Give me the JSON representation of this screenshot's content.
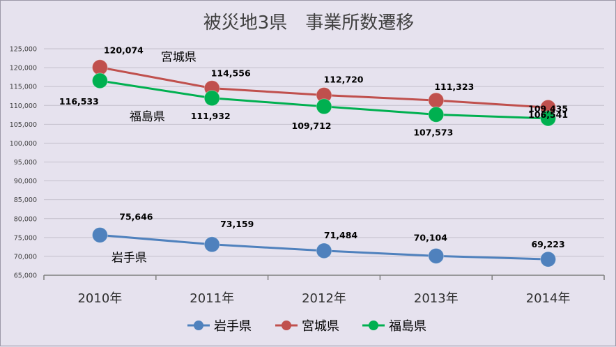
{
  "chart_data": {
    "type": "line",
    "title": "被災地3県　事業所数遷移",
    "categories": [
      "2010年",
      "2011年",
      "2012年",
      "2013年",
      "2014年"
    ],
    "ylim": [
      65000,
      125000
    ],
    "ytick_step": 5000,
    "yticks": [
      "65,000",
      "70,000",
      "75,000",
      "80,000",
      "85,000",
      "90,000",
      "95,000",
      "100,000",
      "105,000",
      "110,000",
      "115,000",
      "120,000",
      "125,000"
    ],
    "grid": true,
    "legend_position": "bottom",
    "series": [
      {
        "name": "岩手県",
        "color": "#4f81bd",
        "values": [
          75646,
          73159,
          71484,
          70104,
          69223
        ],
        "labels": [
          "75,646",
          "73,159",
          "71,484",
          "70,104",
          "69,223"
        ]
      },
      {
        "name": "宮城県",
        "color": "#c0504d",
        "values": [
          120074,
          114556,
          112720,
          111323,
          109435
        ],
        "labels": [
          "120,074",
          "114,556",
          "112,720",
          "111,323",
          "109,435"
        ]
      },
      {
        "name": "福島県",
        "color": "#00b050",
        "values": [
          116533,
          111932,
          109712,
          107573,
          106541
        ],
        "labels": [
          "116,533",
          "111,932",
          "109,712",
          "107,573",
          "106,541"
        ]
      }
    ]
  }
}
